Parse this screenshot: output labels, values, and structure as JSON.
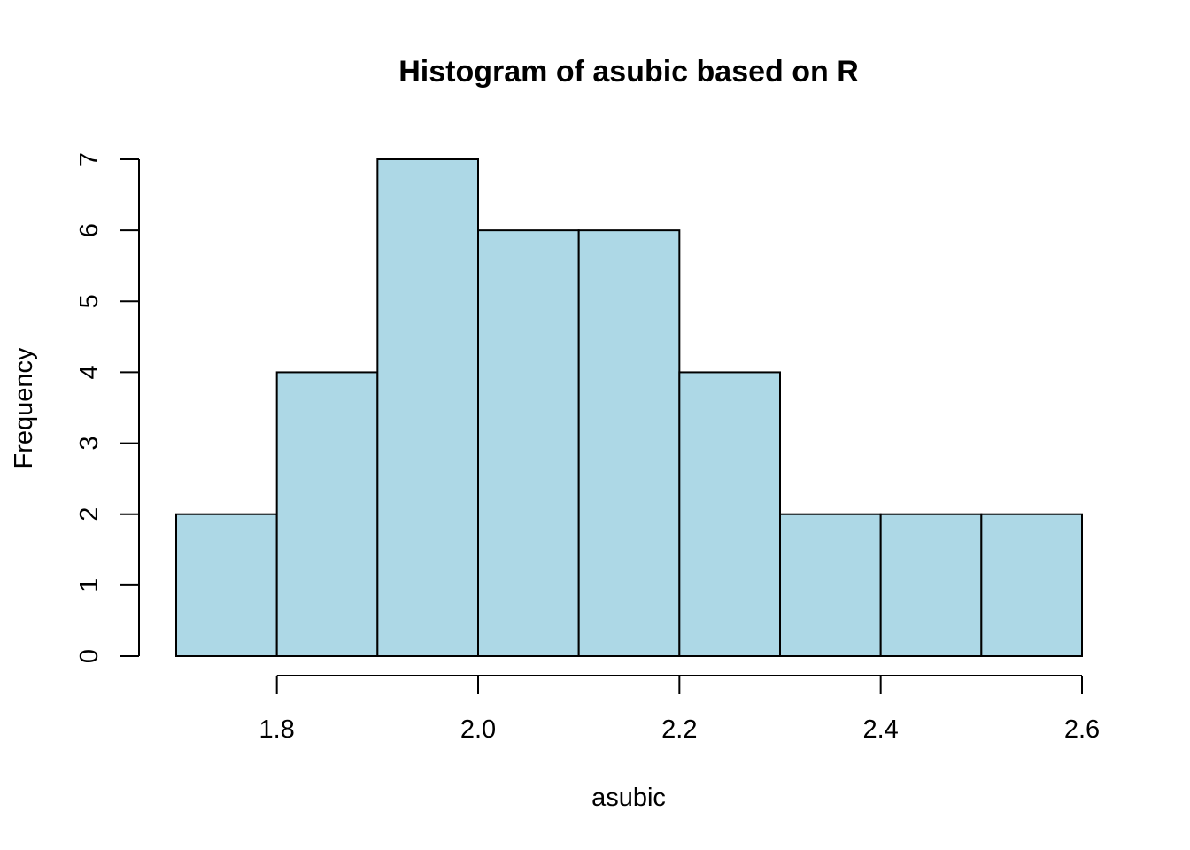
{
  "chart_data": {
    "type": "bar",
    "title": "Histogram of asubic based on R",
    "xlabel": "asubic",
    "ylabel": "Frequency",
    "bins": [
      {
        "start": 1.7,
        "end": 1.8,
        "count": 2
      },
      {
        "start": 1.8,
        "end": 1.9,
        "count": 4
      },
      {
        "start": 1.9,
        "end": 2.0,
        "count": 7
      },
      {
        "start": 2.0,
        "end": 2.1,
        "count": 6
      },
      {
        "start": 2.1,
        "end": 2.2,
        "count": 6
      },
      {
        "start": 2.2,
        "end": 2.3,
        "count": 4
      },
      {
        "start": 2.3,
        "end": 2.4,
        "count": 2
      },
      {
        "start": 2.4,
        "end": 2.5,
        "count": 2
      },
      {
        "start": 2.5,
        "end": 2.6,
        "count": 2
      }
    ],
    "xticks": [
      "1.8",
      "2.0",
      "2.2",
      "2.4",
      "2.6"
    ],
    "yticks": [
      "0",
      "1",
      "2",
      "3",
      "4",
      "5",
      "6",
      "7"
    ],
    "xlim": [
      1.7,
      2.6
    ],
    "ylim": [
      0,
      7
    ],
    "bar_color": "#add8e6",
    "grid": false,
    "legend": "none"
  }
}
